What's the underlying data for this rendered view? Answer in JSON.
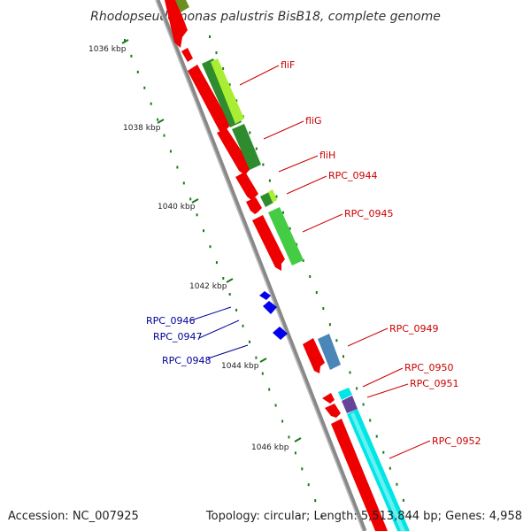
{
  "title": "Rhodopseudomonas palustris BisB18, complete genome",
  "footer": {
    "accession": "Accession: NC_007925",
    "stats": "Topology: circular; Length: 5,513,844 bp; Genes: 4,958"
  },
  "colors": {
    "forward_label": "#cc0000",
    "reverse_label": "#000099",
    "axis": "#888888",
    "tick": "#1a7a1a"
  },
  "kbp_labels": [
    "1036 kbp",
    "1038 kbp",
    "1040 kbp",
    "1042 kbp",
    "1044 kbp",
    "1046 kbp"
  ],
  "gene_labels": {
    "fliF": "fliF",
    "fliG": "fliG",
    "fliH": "fliH",
    "RPC_0944": "RPC_0944",
    "RPC_0945": "RPC_0945",
    "RPC_0946": "RPC_0946",
    "RPC_0947": "RPC_0947",
    "RPC_0948": "RPC_0948",
    "RPC_0949": "RPC_0949",
    "RPC_0950": "RPC_0950",
    "RPC_0951": "RPC_0951",
    "RPC_0952": "RPC_0952"
  }
}
